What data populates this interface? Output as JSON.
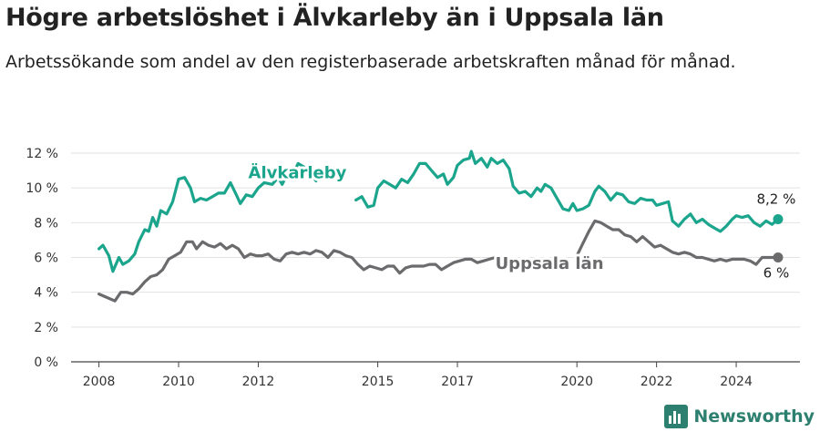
{
  "title": "Högre arbetslöshet i Älvkarleby än i Uppsala län",
  "subtitle": "Arbetssökande som andel av den registerbaserade arbetskraften månad för månad.",
  "brand": "Newsworthy",
  "chart_data": {
    "type": "line",
    "xlim": [
      2007.3,
      2025.6
    ],
    "ylim": [
      0,
      12
    ],
    "yticks": [
      0,
      2,
      4,
      6,
      8,
      10,
      12
    ],
    "ytick_labels": [
      "0 %",
      "2 %",
      "4 %",
      "6 %",
      "8 %",
      "10 %",
      "12 %"
    ],
    "xticks": [
      2008,
      2010,
      2012,
      2015,
      2017,
      2020,
      2022,
      2024
    ],
    "xtick_labels": [
      "2008",
      "2010",
      "2012",
      "2015",
      "2017",
      "2020",
      "2022",
      "2024"
    ],
    "grid": true,
    "legend": "inline labels",
    "colors": {
      "alvkarleby": "#1ba58c",
      "uppsala": "#6b6b6e"
    },
    "series": [
      {
        "name": "Älvkarleby",
        "end_label": "8,2 %",
        "segments": [
          [
            [
              2008.0,
              6.5
            ],
            [
              2008.1,
              6.7
            ],
            [
              2008.25,
              6.1
            ],
            [
              2008.35,
              5.2
            ],
            [
              2008.5,
              6.0
            ],
            [
              2008.6,
              5.6
            ],
            [
              2008.75,
              5.8
            ],
            [
              2008.9,
              6.2
            ],
            [
              2009.0,
              6.9
            ],
            [
              2009.15,
              7.6
            ],
            [
              2009.25,
              7.5
            ],
            [
              2009.35,
              8.3
            ],
            [
              2009.45,
              7.8
            ],
            [
              2009.55,
              8.7
            ],
            [
              2009.7,
              8.5
            ],
            [
              2009.85,
              9.2
            ],
            [
              2010.0,
              10.5
            ],
            [
              2010.15,
              10.6
            ],
            [
              2010.3,
              10.0
            ],
            [
              2010.4,
              9.2
            ],
            [
              2010.55,
              9.4
            ],
            [
              2010.7,
              9.3
            ],
            [
              2010.85,
              9.5
            ],
            [
              2011.0,
              9.7
            ],
            [
              2011.15,
              9.7
            ],
            [
              2011.3,
              10.3
            ],
            [
              2011.45,
              9.6
            ],
            [
              2011.55,
              9.1
            ],
            [
              2011.7,
              9.6
            ],
            [
              2011.85,
              9.5
            ],
            [
              2012.0,
              10.0
            ],
            [
              2012.15,
              10.3
            ],
            [
              2012.35,
              10.2
            ],
            [
              2012.5,
              10.6
            ],
            [
              2012.6,
              10.2
            ],
            [
              2012.75,
              10.9
            ],
            [
              2012.85,
              10.7
            ],
            [
              2013.0,
              11.4
            ],
            [
              2013.15,
              11.2
            ],
            [
              2013.3,
              10.8
            ],
            [
              2013.45,
              10.4
            ]
          ],
          [
            [
              2014.45,
              9.3
            ],
            [
              2014.6,
              9.5
            ],
            [
              2014.75,
              8.9
            ],
            [
              2014.9,
              9.0
            ],
            [
              2015.0,
              10.0
            ],
            [
              2015.15,
              10.4
            ],
            [
              2015.3,
              10.2
            ],
            [
              2015.45,
              10.0
            ],
            [
              2015.6,
              10.5
            ],
            [
              2015.75,
              10.3
            ],
            [
              2015.9,
              10.8
            ],
            [
              2016.05,
              11.4
            ],
            [
              2016.2,
              11.4
            ],
            [
              2016.35,
              11.0
            ],
            [
              2016.5,
              10.6
            ],
            [
              2016.65,
              10.8
            ],
            [
              2016.75,
              10.2
            ],
            [
              2016.9,
              10.6
            ],
            [
              2017.0,
              11.3
            ],
            [
              2017.15,
              11.6
            ],
            [
              2017.3,
              11.7
            ],
            [
              2017.35,
              12.1
            ],
            [
              2017.45,
              11.4
            ],
            [
              2017.6,
              11.7
            ],
            [
              2017.75,
              11.2
            ],
            [
              2017.85,
              11.7
            ],
            [
              2018.0,
              11.4
            ],
            [
              2018.15,
              11.6
            ],
            [
              2018.3,
              11.1
            ],
            [
              2018.4,
              10.1
            ],
            [
              2018.55,
              9.7
            ],
            [
              2018.7,
              9.8
            ],
            [
              2018.85,
              9.5
            ],
            [
              2019.0,
              10.0
            ],
            [
              2019.1,
              9.8
            ],
            [
              2019.2,
              10.2
            ],
            [
              2019.35,
              10.0
            ],
            [
              2019.5,
              9.4
            ],
            [
              2019.65,
              8.8
            ],
            [
              2019.8,
              8.7
            ],
            [
              2019.9,
              9.1
            ],
            [
              2020.0,
              8.7
            ],
            [
              2020.15,
              8.8
            ],
            [
              2020.3,
              9.0
            ],
            [
              2020.45,
              9.8
            ],
            [
              2020.55,
              10.1
            ],
            [
              2020.7,
              9.8
            ],
            [
              2020.85,
              9.3
            ],
            [
              2021.0,
              9.7
            ],
            [
              2021.15,
              9.6
            ],
            [
              2021.3,
              9.2
            ],
            [
              2021.45,
              9.1
            ],
            [
              2021.6,
              9.4
            ],
            [
              2021.75,
              9.3
            ],
            [
              2021.9,
              9.3
            ],
            [
              2022.0,
              9.0
            ],
            [
              2022.15,
              9.1
            ],
            [
              2022.3,
              9.2
            ],
            [
              2022.4,
              8.1
            ],
            [
              2022.55,
              7.8
            ],
            [
              2022.7,
              8.2
            ],
            [
              2022.85,
              8.5
            ],
            [
              2023.0,
              8.0
            ],
            [
              2023.15,
              8.2
            ],
            [
              2023.3,
              7.9
            ],
            [
              2023.45,
              7.7
            ],
            [
              2023.6,
              7.5
            ],
            [
              2023.75,
              7.8
            ],
            [
              2023.9,
              8.2
            ],
            [
              2024.0,
              8.4
            ],
            [
              2024.15,
              8.3
            ],
            [
              2024.3,
              8.4
            ],
            [
              2024.45,
              8.0
            ],
            [
              2024.6,
              7.8
            ],
            [
              2024.75,
              8.1
            ],
            [
              2024.9,
              7.9
            ],
            [
              2025.05,
              8.2
            ]
          ]
        ]
      },
      {
        "name": "Uppsala län",
        "end_label": "6 %",
        "segments": [
          [
            [
              2008.0,
              3.9
            ],
            [
              2008.2,
              3.7
            ],
            [
              2008.4,
              3.5
            ],
            [
              2008.55,
              4.0
            ],
            [
              2008.7,
              4.0
            ],
            [
              2008.85,
              3.9
            ],
            [
              2009.0,
              4.2
            ],
            [
              2009.15,
              4.6
            ],
            [
              2009.3,
              4.9
            ],
            [
              2009.45,
              5.0
            ],
            [
              2009.6,
              5.3
            ],
            [
              2009.75,
              5.9
            ],
            [
              2009.9,
              6.1
            ],
            [
              2010.05,
              6.3
            ],
            [
              2010.2,
              6.9
            ],
            [
              2010.35,
              6.9
            ],
            [
              2010.45,
              6.5
            ],
            [
              2010.6,
              6.9
            ],
            [
              2010.75,
              6.7
            ],
            [
              2010.9,
              6.6
            ],
            [
              2011.05,
              6.8
            ],
            [
              2011.2,
              6.5
            ],
            [
              2011.35,
              6.7
            ],
            [
              2011.5,
              6.5
            ],
            [
              2011.65,
              6.0
            ],
            [
              2011.8,
              6.2
            ],
            [
              2011.95,
              6.1
            ],
            [
              2012.1,
              6.1
            ],
            [
              2012.25,
              6.2
            ],
            [
              2012.4,
              5.9
            ],
            [
              2012.55,
              5.8
            ],
            [
              2012.7,
              6.2
            ],
            [
              2012.85,
              6.3
            ],
            [
              2013.0,
              6.2
            ],
            [
              2013.15,
              6.3
            ],
            [
              2013.3,
              6.2
            ],
            [
              2013.45,
              6.4
            ],
            [
              2013.6,
              6.3
            ],
            [
              2013.75,
              6.0
            ],
            [
              2013.9,
              6.4
            ],
            [
              2014.05,
              6.3
            ],
            [
              2014.2,
              6.1
            ],
            [
              2014.35,
              6.0
            ],
            [
              2014.5,
              5.6
            ],
            [
              2014.65,
              5.3
            ],
            [
              2014.8,
              5.5
            ],
            [
              2014.95,
              5.4
            ],
            [
              2015.1,
              5.3
            ],
            [
              2015.25,
              5.5
            ],
            [
              2015.4,
              5.5
            ],
            [
              2015.55,
              5.1
            ],
            [
              2015.7,
              5.4
            ],
            [
              2015.85,
              5.5
            ],
            [
              2016.0,
              5.5
            ],
            [
              2016.15,
              5.5
            ],
            [
              2016.3,
              5.6
            ],
            [
              2016.45,
              5.6
            ],
            [
              2016.6,
              5.3
            ],
            [
              2016.75,
              5.5
            ],
            [
              2016.9,
              5.7
            ],
            [
              2017.05,
              5.8
            ],
            [
              2017.2,
              5.9
            ],
            [
              2017.35,
              5.9
            ],
            [
              2017.5,
              5.7
            ],
            [
              2017.65,
              5.8
            ],
            [
              2017.8,
              5.9
            ],
            [
              2017.95,
              6.0
            ]
          ],
          [
            [
              2020.0,
              6.1
            ],
            [
              2020.15,
              6.8
            ],
            [
              2020.3,
              7.5
            ],
            [
              2020.45,
              8.1
            ],
            [
              2020.6,
              8.0
            ],
            [
              2020.75,
              7.8
            ],
            [
              2020.9,
              7.6
            ],
            [
              2021.05,
              7.6
            ],
            [
              2021.2,
              7.3
            ],
            [
              2021.35,
              7.2
            ],
            [
              2021.5,
              6.9
            ],
            [
              2021.65,
              7.2
            ],
            [
              2021.8,
              6.9
            ],
            [
              2021.95,
              6.6
            ],
            [
              2022.1,
              6.7
            ],
            [
              2022.25,
              6.5
            ],
            [
              2022.4,
              6.3
            ],
            [
              2022.55,
              6.2
            ],
            [
              2022.7,
              6.3
            ],
            [
              2022.85,
              6.2
            ],
            [
              2023.0,
              6.0
            ],
            [
              2023.15,
              6.0
            ],
            [
              2023.3,
              5.9
            ],
            [
              2023.45,
              5.8
            ],
            [
              2023.6,
              5.9
            ],
            [
              2023.75,
              5.8
            ],
            [
              2023.9,
              5.9
            ],
            [
              2024.05,
              5.9
            ],
            [
              2024.2,
              5.9
            ],
            [
              2024.35,
              5.8
            ],
            [
              2024.5,
              5.6
            ],
            [
              2024.65,
              6.0
            ],
            [
              2024.8,
              6.0
            ],
            [
              2024.95,
              6.0
            ],
            [
              2025.05,
              6.0
            ]
          ]
        ]
      }
    ]
  }
}
